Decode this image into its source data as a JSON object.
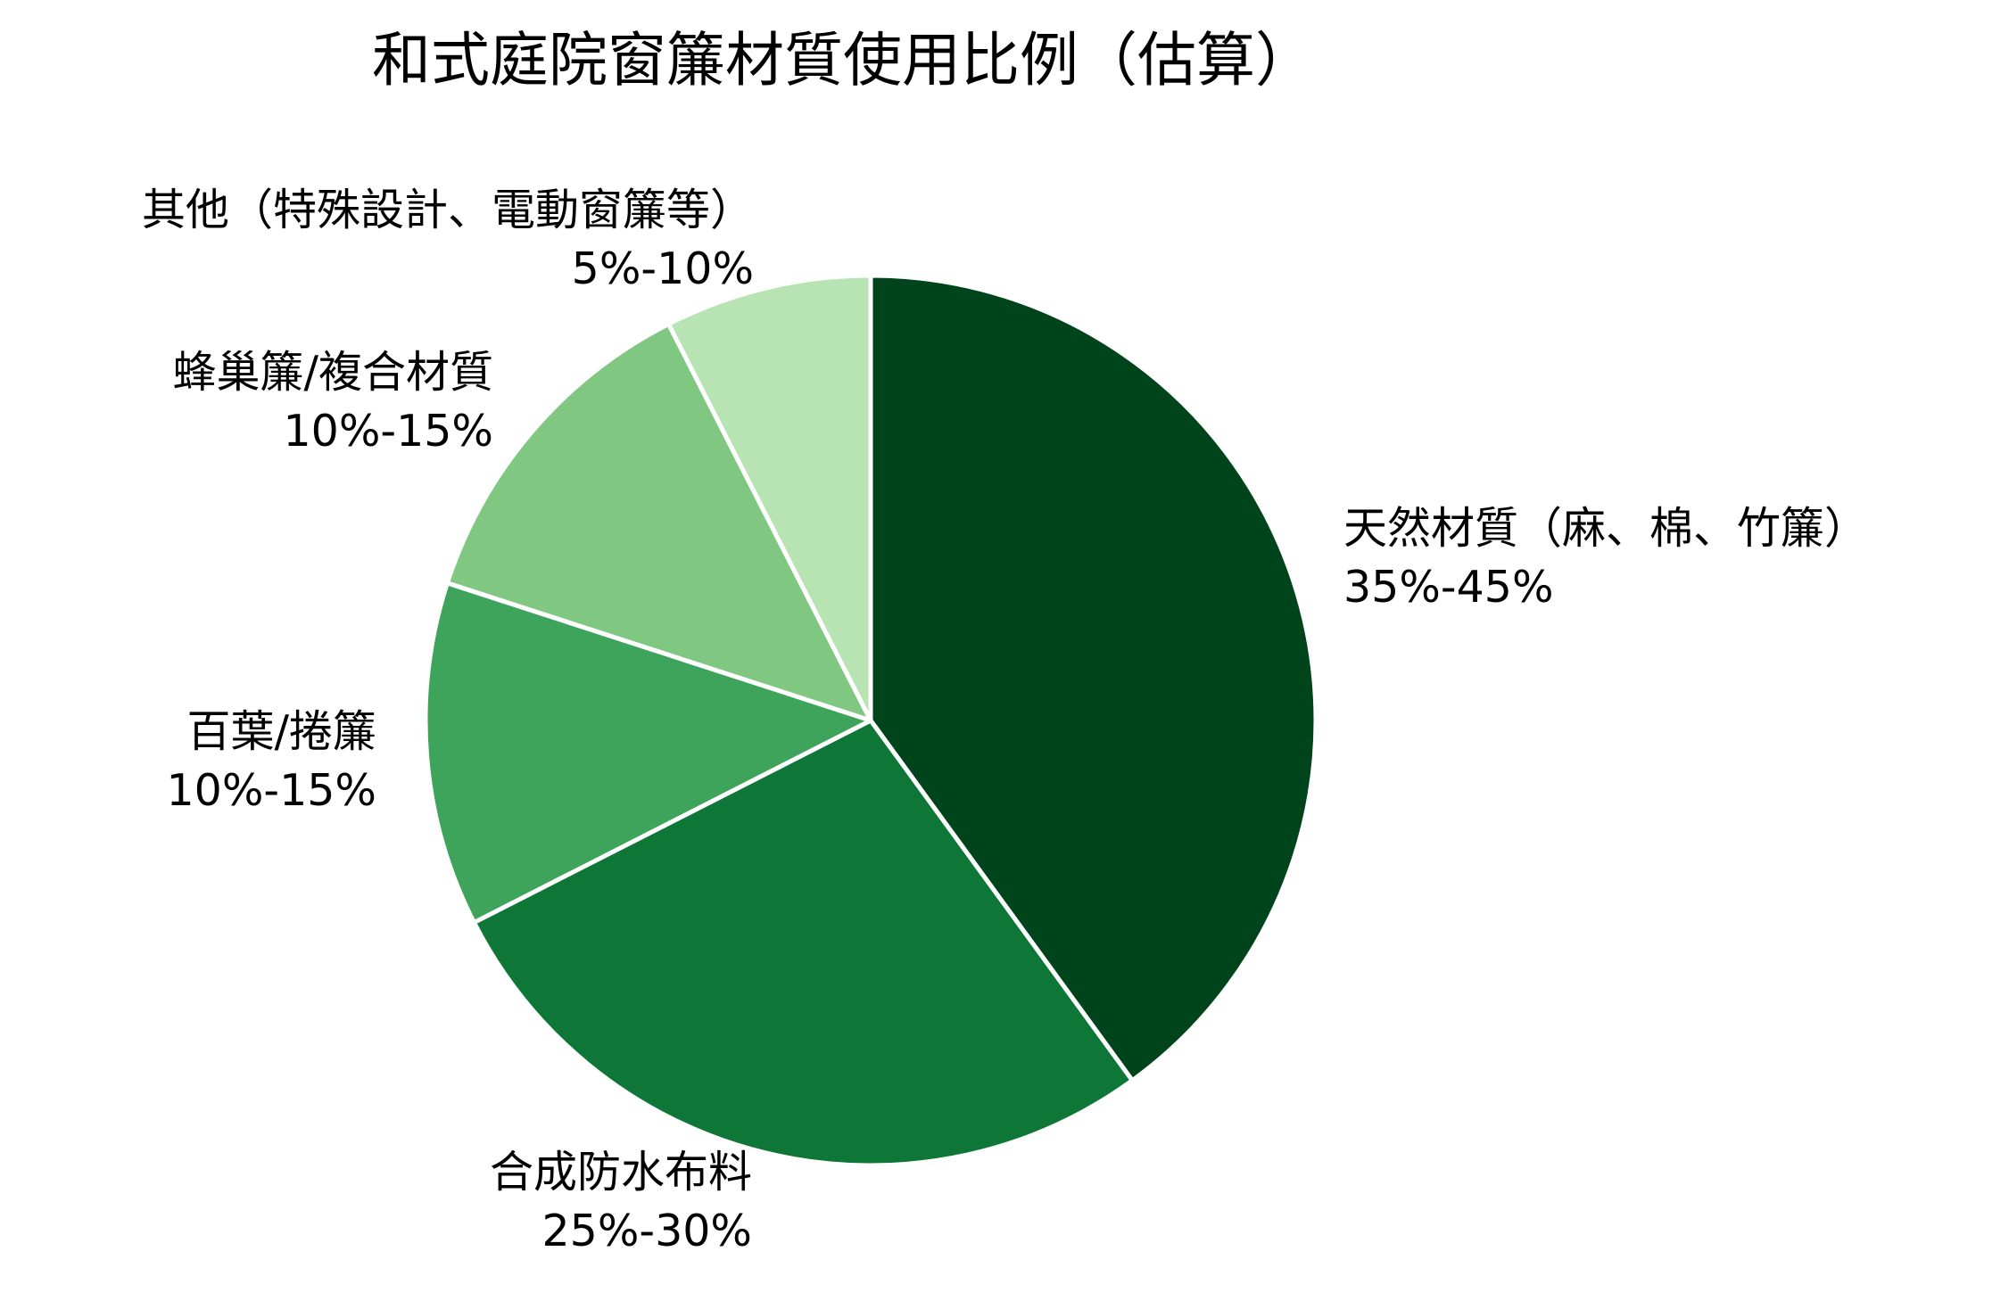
{
  "title": "和式庭院窗簾材質使用比例（估算）",
  "chart_data": {
    "type": "pie",
    "title": "和式庭院窗簾材質使用比例（估算）",
    "start_angle": "12 o'clock, clockwise",
    "categories": [
      "天然材質（麻、棉、竹簾）",
      "合成防水布料",
      "百葉/捲簾",
      "蜂巢簾/複合材質",
      "其他（特殊設計、電動窗簾等）"
    ],
    "ranges": [
      "35%-45%",
      "25%-30%",
      "10%-15%",
      "10%-15%",
      "5%-10%"
    ],
    "values": [
      40,
      27.5,
      12.5,
      12.5,
      7.5
    ],
    "colors": [
      "#00441b",
      "#0e7737",
      "#3ea35b",
      "#80c781",
      "#b8e3b3"
    ],
    "legend": "none (labels placed outside slices)"
  },
  "labels": [
    {
      "name": "天然材質（麻、棉、竹簾）",
      "range": "35%-45%"
    },
    {
      "name": "合成防水布料",
      "range": "25%-30%"
    },
    {
      "name": "百葉/捲簾",
      "range": "10%-15%"
    },
    {
      "name": "蜂巢簾/複合材質",
      "range": "10%-15%"
    },
    {
      "name": "其他（特殊設計、電動窗簾等）",
      "range": "5%-10%"
    }
  ]
}
